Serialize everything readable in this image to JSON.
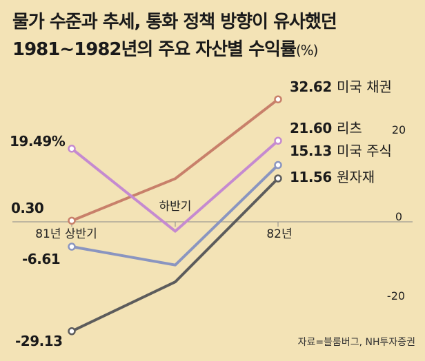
{
  "title_line1": "물가 수준과 추세, 통화 정책 방향이 유사했던",
  "title_line2": "1981~1982년의 주요 자산별 수익률",
  "title_unit": "(%)",
  "source": "자료=블룸버그, NH투자증권",
  "colors": {
    "background": "#f3e3b6",
    "bond": "#c8806a",
    "reits": "#c58ad0",
    "stock": "#8a95c0",
    "commodity": "#5c5c5c"
  },
  "chart_data": {
    "type": "line",
    "categories": [
      "81년 상반기",
      "하반기",
      "82년"
    ],
    "yaxis_ticks": [
      20,
      0,
      -20
    ],
    "yaxis_tick_labels": [
      "20",
      "0",
      "-20"
    ],
    "ylim": [
      -30,
      35
    ],
    "grid": false,
    "series": [
      {
        "name": "미국 채권",
        "values": [
          0.3,
          11.5,
          32.62
        ],
        "start_label": "0.30",
        "end_label": "32.62",
        "color": "#c8806a"
      },
      {
        "name": "리츠",
        "values": [
          19.49,
          -2.5,
          21.6
        ],
        "start_label": "19.49%",
        "end_label": "21.60",
        "color": "#c58ad0"
      },
      {
        "name": "미국 주식",
        "values": [
          -6.61,
          -11.5,
          15.13
        ],
        "start_label": "-6.61",
        "end_label": "15.13",
        "color": "#8a95c0"
      },
      {
        "name": "원자재",
        "values": [
          -29.13,
          -16.0,
          11.56
        ],
        "start_label": "-29.13",
        "end_label": "11.56",
        "color": "#5c5c5c"
      }
    ]
  }
}
